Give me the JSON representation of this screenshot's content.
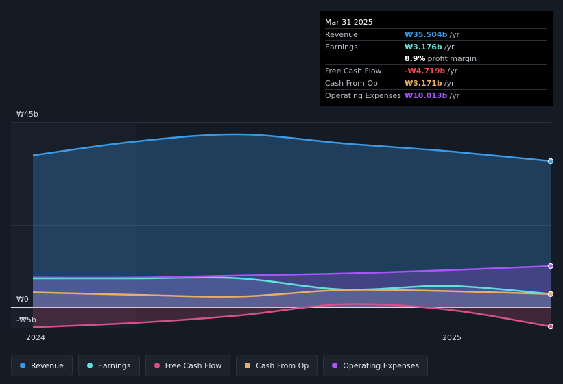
{
  "tooltip": {
    "date": "Mar 31 2025",
    "rows": [
      {
        "label": "Revenue",
        "value": "₩35.504b",
        "unit": "/yr",
        "color": "#3b9ae8"
      },
      {
        "label": "Earnings",
        "value": "₩3.176b",
        "unit": "/yr",
        "color": "#5fe0d8"
      },
      {
        "label": "",
        "value": "8.9%",
        "unit": "profit margin",
        "color": "#ffffff"
      },
      {
        "label": "Free Cash Flow",
        "value": "-₩4.719b",
        "unit": "/yr",
        "color": "#e8484f"
      },
      {
        "label": "Cash From Op",
        "value": "₩3.171b",
        "unit": "/yr",
        "color": "#e8ad6a"
      },
      {
        "label": "Operating Expenses",
        "value": "₩10.013b",
        "unit": "/yr",
        "color": "#a855f7"
      }
    ]
  },
  "legend": [
    {
      "label": "Revenue",
      "color": "#3b9ae8"
    },
    {
      "label": "Earnings",
      "color": "#5fe0d8"
    },
    {
      "label": "Free Cash Flow",
      "color": "#d6508a"
    },
    {
      "label": "Cash From Op",
      "color": "#e8ad6a"
    },
    {
      "label": "Operating Expenses",
      "color": "#a855f7"
    }
  ],
  "chart_data": {
    "type": "line",
    "y_tick_labels": [
      "₩45b",
      "₩0",
      "-₩5b"
    ],
    "x_tick_labels": [
      "2024",
      "2025"
    ],
    "ylim": [
      -5,
      45
    ],
    "series": [
      {
        "name": "Revenue",
        "color": "#3b9ae8",
        "x": [
          "2023-12-31",
          "2024-03-31",
          "2024-06-30",
          "2024-09-30",
          "2024-12-31",
          "2025-03-31"
        ],
        "values": [
          36.9,
          40.3,
          42.0,
          39.8,
          37.9,
          35.5
        ]
      },
      {
        "name": "Earnings",
        "color": "#5fe0d8",
        "x": [
          "2023-12-31",
          "2024-03-31",
          "2024-06-30",
          "2024-09-30",
          "2024-12-31",
          "2025-03-31"
        ],
        "values": [
          7.0,
          7.0,
          7.0,
          4.3,
          5.2,
          3.2
        ]
      },
      {
        "name": "Free Cash Flow",
        "color": "#d6508a",
        "x": [
          "2023-12-31",
          "2024-03-31",
          "2024-06-30",
          "2024-09-30",
          "2024-12-31",
          "2025-03-31"
        ],
        "values": [
          -4.9,
          -3.8,
          -2.0,
          0.7,
          -0.6,
          -4.7
        ]
      },
      {
        "name": "Cash From Op",
        "color": "#e8ad6a",
        "x": [
          "2023-12-31",
          "2024-03-31",
          "2024-06-30",
          "2024-09-30",
          "2024-12-31",
          "2025-03-31"
        ],
        "values": [
          3.6,
          3.0,
          2.6,
          4.2,
          3.9,
          3.2
        ]
      },
      {
        "name": "Operating Expenses",
        "color": "#a855f7",
        "x": [
          "2023-12-31",
          "2024-03-31",
          "2024-06-30",
          "2024-09-30",
          "2024-12-31",
          "2025-03-31"
        ],
        "values": [
          7.2,
          7.2,
          7.7,
          8.2,
          9.0,
          10.0
        ]
      }
    ]
  }
}
